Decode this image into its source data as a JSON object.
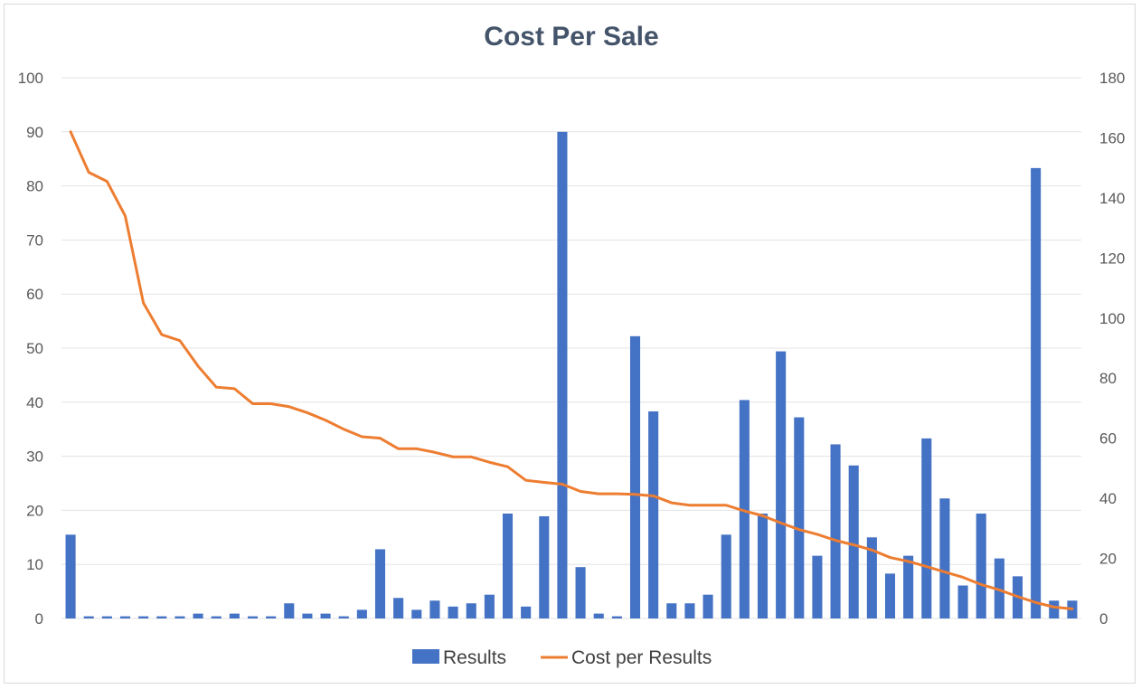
{
  "chart_data": {
    "type": "bar",
    "title": "Cost Per Sale",
    "xlabel": "",
    "ylabel": "",
    "ylim": [
      0,
      100
    ],
    "y2lim": [
      0,
      180
    ],
    "yticks": [
      0,
      10,
      20,
      30,
      40,
      50,
      60,
      70,
      80,
      90,
      100
    ],
    "y2ticks": [
      0,
      20,
      40,
      60,
      80,
      100,
      120,
      140,
      160,
      180
    ],
    "grid": true,
    "legend_position": "bottom",
    "series": [
      {
        "name": "Results",
        "type": "bar",
        "axis": "left",
        "color": "#4472c4",
        "values": [
          15.5,
          0.4,
          0.4,
          0.4,
          0.4,
          0.4,
          0.4,
          0.9,
          0.4,
          0.9,
          0.4,
          0.4,
          2.8,
          0.9,
          0.9,
          0.4,
          1.6,
          12.8,
          3.8,
          1.6,
          3.3,
          2.2,
          2.8,
          4.4,
          19.4,
          2.2,
          18.9,
          90,
          9.5,
          0.9,
          0.4,
          52.2,
          38.3,
          2.8,
          2.8,
          4.4,
          15.5,
          40.4,
          19.4,
          49.4,
          37.2,
          11.6,
          32.2,
          28.3,
          15,
          8.3,
          11.6,
          33.3,
          22.2,
          6.1,
          19.4,
          11.1,
          7.8,
          83.3,
          3.3,
          3.3
        ]
      },
      {
        "name": "Cost per Results",
        "type": "line",
        "axis": "right",
        "color": "#ed7d31",
        "values": [
          162,
          148.5,
          145.5,
          134,
          105,
          94.5,
          92.5,
          84,
          77,
          76.5,
          71.5,
          71.5,
          70.5,
          68.5,
          66,
          63,
          60.5,
          60,
          56.5,
          56.5,
          55.3,
          53.8,
          53.8,
          52,
          50.5,
          46,
          45.3,
          44.7,
          42.3,
          41.5,
          41.5,
          41.3,
          40.8,
          38.5,
          37.7,
          37.7,
          37.7,
          35.8,
          34.2,
          31.8,
          29.6,
          28,
          26,
          24.5,
          22.8,
          20.3,
          19,
          17.3,
          15.5,
          13.7,
          11.3,
          9.5,
          7.3,
          5.3,
          3.8,
          3.2
        ]
      }
    ]
  }
}
